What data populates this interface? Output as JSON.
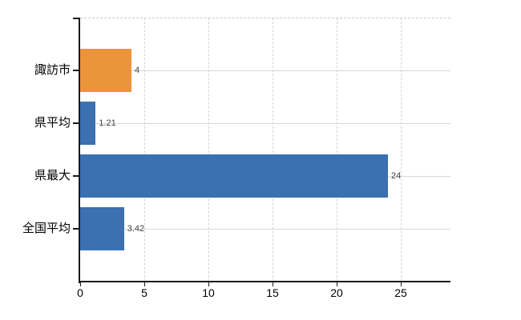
{
  "chart_data": {
    "type": "bar",
    "orientation": "horizontal",
    "title": "",
    "xlabel": "",
    "ylabel": "",
    "categories": [
      "諏訪市",
      "県平均",
      "県最大",
      "全国平均"
    ],
    "values": [
      4,
      1.21,
      24,
      3.42
    ],
    "value_labels": [
      "4",
      "1.21",
      "24",
      "3.42"
    ],
    "bar_colors": [
      "#ec9439",
      "#3b70b1",
      "#3b70b1",
      "#3b70b1"
    ],
    "x_ticks": [
      "0",
      "5",
      "10",
      "15",
      "20",
      "25"
    ],
    "x_tick_values": [
      0,
      5,
      10,
      15,
      20,
      25
    ],
    "xlim": [
      0,
      28.875
    ],
    "grid": "on",
    "legend_position": "none"
  },
  "colors": {
    "bar_orange": "#ec9439",
    "bar_blue": "#3b70b1",
    "axis": "#1a1a1a",
    "gridline": "#d8d8d8",
    "top_border_dashed": "#c6c6c6",
    "value_label_text": "#404040",
    "background": "#ffffff"
  }
}
